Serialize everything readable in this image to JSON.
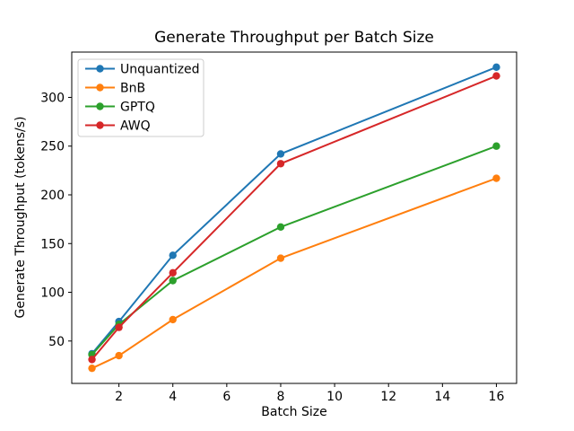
{
  "chart_data": {
    "type": "line",
    "title": "Generate Throughput per Batch Size",
    "xlabel": "Batch Size",
    "ylabel": "Generate Throughput (tokens/s)",
    "x": [
      1,
      2,
      4,
      8,
      16
    ],
    "series": [
      {
        "name": "Unquantized",
        "color": "#1f77b4",
        "values": [
          37,
          70,
          138,
          242,
          331
        ]
      },
      {
        "name": "BnB",
        "color": "#ff7f0e",
        "values": [
          22,
          35,
          72,
          135,
          217
        ]
      },
      {
        "name": "GPTQ",
        "color": "#2ca02c",
        "values": [
          36,
          67,
          112,
          167,
          250
        ]
      },
      {
        "name": "AWQ",
        "color": "#d62728",
        "values": [
          31,
          64,
          120,
          232,
          322
        ]
      }
    ],
    "xlim": [
      0.25,
      16.75
    ],
    "ylim": [
      6.5,
      346.5
    ],
    "xticks": [
      2,
      4,
      6,
      8,
      10,
      12,
      14,
      16
    ],
    "yticks": [
      50,
      100,
      150,
      200,
      250,
      300
    ],
    "grid": false,
    "legend_position": "upper left",
    "marker": "o",
    "background_color": "#ffffff",
    "axes_color": "#000000",
    "legend_border_color": "#cccccc"
  }
}
